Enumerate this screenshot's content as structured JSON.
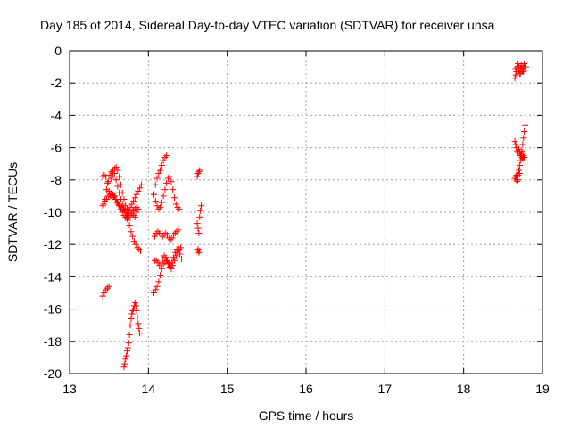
{
  "chart_data": {
    "type": "scatter",
    "title": "Day 185 of 2014, Sidereal Day-to-day VTEC variation (SDTVAR) for receiver unsa",
    "xlabel": "GPS time / hours",
    "ylabel": "SDTVAR / TECUs",
    "xlim": [
      13,
      19
    ],
    "ylim": [
      -20,
      0
    ],
    "xticks": [
      "13",
      "14",
      "15",
      "16",
      "17",
      "18",
      "19"
    ],
    "yticks": [
      "0",
      "-2",
      "-4",
      "-6",
      "-8",
      "-10",
      "-12",
      "-14",
      "-16",
      "-18",
      "-20"
    ],
    "grid": true,
    "marker": "+",
    "color": "#ff0000",
    "series": [
      {
        "name": "SDTVAR",
        "segments": [
          [
            [
              13.42,
              -9.6
            ],
            [
              13.45,
              -9.2
            ],
            [
              13.47,
              -8.6
            ],
            [
              13.49,
              -8.1
            ],
            [
              13.51,
              -7.7
            ],
            [
              13.53,
              -7.5
            ],
            [
              13.55,
              -7.4
            ],
            [
              13.57,
              -7.6
            ],
            [
              13.59,
              -8.0
            ],
            [
              13.61,
              -8.4
            ],
            [
              13.63,
              -8.8
            ],
            [
              13.65,
              -9.2
            ],
            [
              13.67,
              -9.5
            ],
            [
              13.69,
              -9.8
            ],
            [
              13.71,
              -9.9
            ],
            [
              13.73,
              -10.0
            ],
            [
              13.75,
              -9.9
            ],
            [
              13.77,
              -9.7
            ],
            [
              13.79,
              -9.5
            ],
            [
              13.81,
              -9.3
            ],
            [
              13.83,
              -9.1
            ],
            [
              13.85,
              -8.9
            ],
            [
              13.87,
              -8.7
            ],
            [
              13.89,
              -8.5
            ],
            [
              13.91,
              -8.3
            ]
          ],
          [
            [
              13.42,
              -7.8
            ],
            [
              13.44,
              -7.7
            ],
            [
              13.46,
              -7.8
            ],
            [
              13.48,
              -8.2
            ],
            [
              13.5,
              -8.7
            ],
            [
              13.52,
              -9.0
            ],
            [
              13.54,
              -9.1
            ],
            [
              13.56,
              -9.0
            ],
            [
              13.58,
              -9.2
            ],
            [
              13.6,
              -9.4
            ],
            [
              13.62,
              -9.5
            ],
            [
              13.64,
              -9.6
            ],
            [
              13.66,
              -9.7
            ],
            [
              13.68,
              -9.8
            ],
            [
              13.7,
              -9.9
            ],
            [
              13.72,
              -10.2
            ],
            [
              13.74,
              -10.5
            ],
            [
              13.76,
              -10.8
            ],
            [
              13.78,
              -11.2
            ],
            [
              13.8,
              -11.5
            ],
            [
              13.82,
              -11.8
            ],
            [
              13.84,
              -12.0
            ],
            [
              13.86,
              -12.2
            ],
            [
              13.88,
              -12.3
            ],
            [
              13.9,
              -12.4
            ]
          ],
          [
            [
              13.43,
              -9.5
            ],
            [
              13.45,
              -9.3
            ],
            [
              13.47,
              -9.2
            ],
            [
              13.49,
              -9.0
            ],
            [
              13.51,
              -8.9
            ],
            [
              13.53,
              -8.8
            ],
            [
              13.55,
              -8.9
            ],
            [
              13.57,
              -9.0
            ],
            [
              13.59,
              -9.2
            ],
            [
              13.61,
              -9.4
            ],
            [
              13.63,
              -9.6
            ],
            [
              13.65,
              -9.8
            ],
            [
              13.67,
              -10.0
            ],
            [
              13.69,
              -10.2
            ],
            [
              13.71,
              -10.3
            ],
            [
              13.73,
              -10.4
            ],
            [
              13.75,
              -10.3
            ],
            [
              13.77,
              -10.2
            ],
            [
              13.79,
              -10.1
            ],
            [
              13.81,
              -10.2
            ],
            [
              13.83,
              -10.3
            ],
            [
              13.85,
              -10.0
            ],
            [
              13.87,
              -9.8
            ]
          ],
          [
            [
              13.53,
              -7.9
            ],
            [
              13.55,
              -7.6
            ],
            [
              13.57,
              -7.3
            ],
            [
              13.59,
              -7.2
            ],
            [
              13.61,
              -7.4
            ],
            [
              13.63,
              -7.8
            ],
            [
              13.65,
              -8.3
            ],
            [
              13.67,
              -8.8
            ],
            [
              13.69,
              -9.2
            ],
            [
              13.71,
              -9.6
            ],
            [
              13.73,
              -9.8
            ],
            [
              13.75,
              -10.0
            ],
            [
              13.77,
              -10.1
            ],
            [
              13.79,
              -10.0
            ],
            [
              13.81,
              -9.9
            ],
            [
              13.83,
              -9.8
            ],
            [
              13.85,
              -9.7
            ]
          ],
          [
            [
              13.42,
              -15.2
            ],
            [
              13.44,
              -15.0
            ],
            [
              13.46,
              -14.8
            ],
            [
              13.48,
              -14.7
            ],
            [
              13.5,
              -14.6
            ]
          ],
          [
            [
              13.69,
              -19.6
            ],
            [
              13.7,
              -19.4
            ],
            [
              13.71,
              -19.1
            ],
            [
              13.72,
              -18.9
            ],
            [
              13.73,
              -18.6
            ],
            [
              13.74,
              -18.4
            ],
            [
              13.75,
              -18.1
            ],
            [
              13.76,
              -17.6
            ],
            [
              13.77,
              -17.0
            ],
            [
              13.78,
              -16.6
            ],
            [
              13.79,
              -16.3
            ],
            [
              13.8,
              -16.1
            ],
            [
              13.81,
              -16.0
            ],
            [
              13.82,
              -15.8
            ],
            [
              13.83,
              -15.6
            ],
            [
              13.84,
              -15.8
            ],
            [
              13.85,
              -16.1
            ],
            [
              13.86,
              -16.5
            ],
            [
              13.87,
              -16.9
            ],
            [
              13.88,
              -17.2
            ],
            [
              13.89,
              -17.5
            ]
          ],
          [
            [
              14.07,
              -8.9
            ],
            [
              14.09,
              -8.3
            ],
            [
              14.11,
              -7.9
            ],
            [
              14.13,
              -7.6
            ],
            [
              14.15,
              -7.4
            ],
            [
              14.17,
              -7.1
            ],
            [
              14.19,
              -6.8
            ],
            [
              14.21,
              -6.6
            ],
            [
              14.23,
              -6.5
            ]
          ],
          [
            [
              14.07,
              -8.9
            ],
            [
              14.09,
              -9.3
            ],
            [
              14.11,
              -9.6
            ],
            [
              14.13,
              -9.8
            ],
            [
              14.15,
              -9.7
            ],
            [
              14.17,
              -9.4
            ],
            [
              14.19,
              -9.0
            ],
            [
              14.21,
              -8.6
            ],
            [
              14.23,
              -8.2
            ],
            [
              14.25,
              -7.9
            ],
            [
              14.27,
              -7.8
            ],
            [
              14.29,
              -8.1
            ],
            [
              14.31,
              -8.6
            ],
            [
              14.33,
              -9.1
            ],
            [
              14.35,
              -9.5
            ],
            [
              14.37,
              -9.7
            ],
            [
              14.39,
              -9.8
            ]
          ],
          [
            [
              14.08,
              -11.5
            ],
            [
              14.1,
              -11.3
            ],
            [
              14.12,
              -11.2
            ],
            [
              14.14,
              -11.3
            ],
            [
              14.16,
              -11.4
            ],
            [
              14.18,
              -11.5
            ],
            [
              14.2,
              -11.4
            ],
            [
              14.22,
              -11.3
            ],
            [
              14.24,
              -11.4
            ],
            [
              14.26,
              -11.6
            ],
            [
              14.28,
              -11.7
            ],
            [
              14.3,
              -11.6
            ],
            [
              14.32,
              -11.4
            ],
            [
              14.34,
              -11.3
            ],
            [
              14.36,
              -11.2
            ],
            [
              14.38,
              -11.1
            ]
          ],
          [
            [
              14.07,
              -15.0
            ],
            [
              14.09,
              -14.8
            ],
            [
              14.11,
              -14.6
            ],
            [
              14.13,
              -14.3
            ],
            [
              14.15,
              -13.9
            ],
            [
              14.17,
              -13.5
            ],
            [
              14.19,
              -13.2
            ],
            [
              14.21,
              -13.1
            ],
            [
              14.23,
              -13.0
            ],
            [
              14.25,
              -13.2
            ],
            [
              14.27,
              -13.4
            ],
            [
              14.29,
              -13.5
            ],
            [
              14.31,
              -13.3
            ],
            [
              14.33,
              -13.0
            ],
            [
              14.35,
              -12.7
            ],
            [
              14.37,
              -12.5
            ],
            [
              14.39,
              -12.3
            ],
            [
              14.41,
              -12.2
            ]
          ],
          [
            [
              14.08,
              -13.0
            ],
            [
              14.1,
              -13.0
            ],
            [
              14.12,
              -13.1
            ],
            [
              14.14,
              -13.3
            ],
            [
              14.16,
              -13.2
            ],
            [
              14.18,
              -12.9
            ],
            [
              14.2,
              -12.7
            ],
            [
              14.22,
              -12.8
            ],
            [
              14.24,
              -13.0
            ],
            [
              14.26,
              -13.2
            ],
            [
              14.28,
              -13.3
            ],
            [
              14.3,
              -13.1
            ],
            [
              14.32,
              -12.8
            ],
            [
              14.34,
              -12.5
            ],
            [
              14.36,
              -12.3
            ],
            [
              14.38,
              -12.3
            ],
            [
              14.4,
              -12.6
            ],
            [
              14.42,
              -12.9
            ]
          ],
          [
            [
              14.62,
              -7.8
            ],
            [
              14.63,
              -7.6
            ],
            [
              14.64,
              -7.5
            ],
            [
              14.65,
              -7.4
            ]
          ],
          [
            [
              14.62,
              -10.7
            ],
            [
              14.63,
              -11.0
            ],
            [
              14.64,
              -11.3
            ],
            [
              14.65,
              -10.3
            ],
            [
              14.66,
              -9.9
            ],
            [
              14.67,
              -9.6
            ]
          ],
          [
            [
              14.62,
              -12.4
            ],
            [
              14.63,
              -12.3
            ],
            [
              14.64,
              -12.5
            ],
            [
              14.65,
              -12.4
            ]
          ],
          [
            [
              18.65,
              -1.7
            ],
            [
              18.66,
              -1.5
            ],
            [
              18.67,
              -1.3
            ],
            [
              18.68,
              -1.0
            ],
            [
              18.69,
              -0.8
            ],
            [
              18.7,
              -1.2
            ],
            [
              18.71,
              -1.4
            ],
            [
              18.72,
              -1.1
            ],
            [
              18.73,
              -0.9
            ],
            [
              18.74,
              -1.3
            ],
            [
              18.75,
              -1.2
            ],
            [
              18.76,
              -1.0
            ],
            [
              18.77,
              -0.8
            ],
            [
              18.78,
              -0.7
            ],
            [
              18.79,
              -1.0
            ]
          ],
          [
            [
              18.66,
              -1.1
            ],
            [
              18.68,
              -1.3
            ],
            [
              18.7,
              -1.0
            ],
            [
              18.72,
              -1.4
            ],
            [
              18.74,
              -1.1
            ],
            [
              18.76,
              -1.3
            ],
            [
              18.78,
              -1.2
            ]
          ],
          [
            [
              18.65,
              -5.6
            ],
            [
              18.66,
              -5.8
            ],
            [
              18.67,
              -6.0
            ],
            [
              18.68,
              -6.2
            ],
            [
              18.69,
              -6.3
            ],
            [
              18.7,
              -6.1
            ],
            [
              18.71,
              -6.3
            ],
            [
              18.72,
              -6.5
            ],
            [
              18.73,
              -6.4
            ],
            [
              18.74,
              -6.6
            ],
            [
              18.75,
              -6.7
            ],
            [
              18.76,
              -6.5
            ],
            [
              18.77,
              -6.6
            ]
          ],
          [
            [
              18.66,
              -7.8
            ],
            [
              18.67,
              -8.0
            ],
            [
              18.68,
              -8.1
            ],
            [
              18.69,
              -7.7
            ],
            [
              18.7,
              -7.4
            ],
            [
              18.71,
              -7.1
            ],
            [
              18.72,
              -6.8
            ],
            [
              18.73,
              -6.5
            ],
            [
              18.74,
              -6.2
            ],
            [
              18.75,
              -5.8
            ],
            [
              18.76,
              -5.4
            ],
            [
              18.77,
              -5.0
            ],
            [
              18.78,
              -4.6
            ]
          ],
          [
            [
              18.65,
              -7.9
            ],
            [
              18.67,
              -7.7
            ],
            [
              18.69,
              -8.0
            ],
            [
              18.71,
              -7.6
            ]
          ]
        ]
      }
    ]
  }
}
